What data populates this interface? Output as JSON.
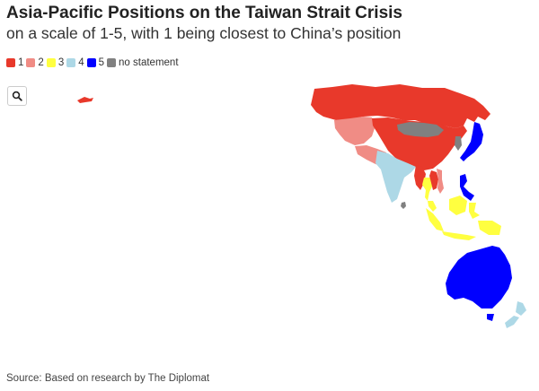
{
  "header": {
    "title": "Asia-Pacific Positions on the Taiwan Strait Crisis",
    "subtitle": "on a scale of 1-5, with 1 being closest to China’s position"
  },
  "legend": {
    "items": [
      {
        "label": "1",
        "color": "#e8392b"
      },
      {
        "label": "2",
        "color": "#f08c85"
      },
      {
        "label": "3",
        "color": "#ffff40"
      },
      {
        "label": "4",
        "color": "#add8e6"
      },
      {
        "label": "5",
        "color": "#0000ff"
      },
      {
        "label": "no statement",
        "color": "#808080"
      }
    ]
  },
  "controls": {
    "search_icon": "search-icon"
  },
  "map": {
    "regions": [
      {
        "name": "Russia",
        "category": "1"
      },
      {
        "name": "China",
        "category": "1"
      },
      {
        "name": "Myanmar",
        "category": "1"
      },
      {
        "name": "Cambodia",
        "category": "1"
      },
      {
        "name": "Laos",
        "category": "1"
      },
      {
        "name": "Kazakhstan",
        "category": "2"
      },
      {
        "name": "Pakistan",
        "category": "2"
      },
      {
        "name": "Vietnam",
        "category": "2"
      },
      {
        "name": "Thailand",
        "category": "3"
      },
      {
        "name": "Malaysia",
        "category": "3"
      },
      {
        "name": "Indonesia",
        "category": "3"
      },
      {
        "name": "India",
        "category": "4"
      },
      {
        "name": "New Zealand",
        "category": "4"
      },
      {
        "name": "Japan",
        "category": "5"
      },
      {
        "name": "Philippines",
        "category": "5"
      },
      {
        "name": "Australia",
        "category": "5"
      },
      {
        "name": "Mongolia",
        "category": "no statement"
      },
      {
        "name": "South Korea",
        "category": "no statement"
      },
      {
        "name": "Sri Lanka",
        "category": "no statement"
      }
    ]
  },
  "footer": {
    "source": "Source: Based on research by The Diplomat"
  }
}
